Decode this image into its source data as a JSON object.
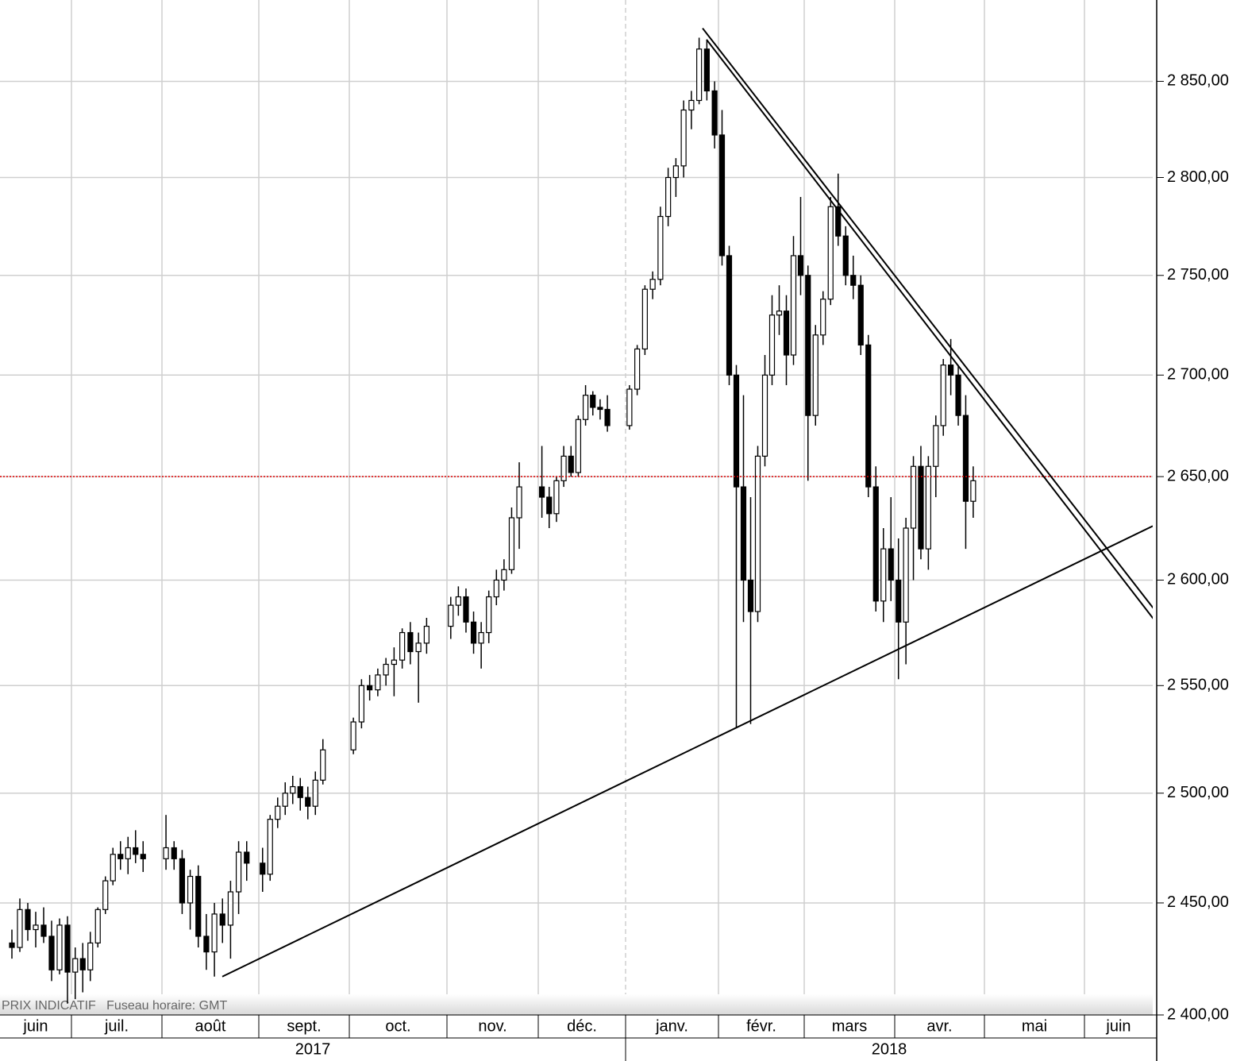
{
  "chart_data": {
    "type": "candlestick",
    "log_scale": true,
    "grid": true,
    "ylim": [
      2400,
      2893
    ],
    "yticks": [
      {
        "value": 2400,
        "label": "2 400,00"
      },
      {
        "value": 2450,
        "label": "2 450,00"
      },
      {
        "value": 2500,
        "label": "2 500,00"
      },
      {
        "value": 2550,
        "label": "2 550,00"
      },
      {
        "value": 2600,
        "label": "2 600,00"
      },
      {
        "value": 2650,
        "label": "2 650,00"
      },
      {
        "value": 2700,
        "label": "2 700,00"
      },
      {
        "value": 2750,
        "label": "2 750,00"
      },
      {
        "value": 2800,
        "label": "2 800,00"
      },
      {
        "value": 2850,
        "label": "2 850,00"
      }
    ],
    "note": "PRIX INDICATIF   Fuseau horaire: GMT",
    "up_color": "#ffffff",
    "down_color": "#000000",
    "reference_line": {
      "value": 2650,
      "color": "#e00000"
    },
    "trendlines": [
      {
        "values": [
          2417,
          2626
        ]
      },
      {
        "values": [
          2878,
          2585
        ]
      },
      {
        "values": [
          2872,
          2580
        ]
      }
    ],
    "years": [
      {
        "label": "2017",
        "months": [
          {
            "label": "juin",
            "candles": [
              [
                2432,
                2438,
                2425,
                2430
              ],
              [
                2430,
                2452,
                2428,
                2447
              ],
              [
                2447,
                2450,
                2433,
                2438
              ],
              [
                2438,
                2446,
                2430,
                2440
              ],
              [
                2440,
                2448,
                2432,
                2435
              ],
              [
                2435,
                2442,
                2415,
                2420
              ],
              [
                2420,
                2443,
                2418,
                2440
              ],
              [
                2440,
                2444,
                2405,
                2419
              ]
            ]
          },
          {
            "label": "juil.",
            "candles": [
              [
                2419,
                2430,
                2407,
                2425
              ],
              [
                2425,
                2432,
                2410,
                2420
              ],
              [
                2420,
                2437,
                2415,
                2432
              ],
              [
                2432,
                2448,
                2430,
                2447
              ],
              [
                2447,
                2462,
                2445,
                2460
              ],
              [
                2460,
                2475,
                2458,
                2472
              ],
              [
                2472,
                2478,
                2465,
                2470
              ],
              [
                2470,
                2480,
                2463,
                2475
              ],
              [
                2475,
                2483,
                2468,
                2472
              ],
              [
                2472,
                2478,
                2464,
                2470
              ]
            ]
          },
          {
            "label": "août",
            "candles": [
              [
                2470,
                2490,
                2465,
                2475
              ],
              [
                2475,
                2478,
                2465,
                2470
              ],
              [
                2470,
                2474,
                2445,
                2450
              ],
              [
                2450,
                2465,
                2438,
                2462
              ],
              [
                2462,
                2467,
                2430,
                2435
              ],
              [
                2435,
                2445,
                2420,
                2428
              ],
              [
                2428,
                2450,
                2417,
                2445
              ],
              [
                2445,
                2452,
                2432,
                2440
              ],
              [
                2440,
                2460,
                2425,
                2455
              ],
              [
                2455,
                2478,
                2445,
                2473
              ],
              [
                2473,
                2478,
                2460,
                2468
              ]
            ]
          },
          {
            "label": "sept.",
            "candles": [
              [
                2468,
                2475,
                2455,
                2463
              ],
              [
                2463,
                2490,
                2460,
                2488
              ],
              [
                2488,
                2498,
                2484,
                2494
              ],
              [
                2494,
                2505,
                2490,
                2500
              ],
              [
                2500,
                2508,
                2495,
                2503
              ],
              [
                2503,
                2507,
                2492,
                2498
              ],
              [
                2498,
                2503,
                2488,
                2494
              ],
              [
                2494,
                2510,
                2490,
                2506
              ],
              [
                2506,
                2525,
                2504,
                2520
              ]
            ]
          },
          {
            "label": "oct.",
            "candles": [
              [
                2520,
                2535,
                2518,
                2533
              ],
              [
                2533,
                2553,
                2530,
                2550
              ],
              [
                2550,
                2555,
                2543,
                2548
              ],
              [
                2548,
                2558,
                2545,
                2555
              ],
              [
                2555,
                2563,
                2550,
                2560
              ],
              [
                2560,
                2568,
                2545,
                2562
              ],
              [
                2562,
                2577,
                2558,
                2575
              ],
              [
                2575,
                2580,
                2560,
                2566
              ],
              [
                2566,
                2575,
                2542,
                2570
              ],
              [
                2570,
                2582,
                2565,
                2578
              ]
            ]
          },
          {
            "label": "nov.",
            "candles": [
              [
                2578,
                2592,
                2572,
                2588
              ],
              [
                2588,
                2597,
                2583,
                2592
              ],
              [
                2592,
                2596,
                2575,
                2580
              ],
              [
                2580,
                2585,
                2565,
                2570
              ],
              [
                2570,
                2580,
                2558,
                2575
              ],
              [
                2575,
                2595,
                2570,
                2592
              ],
              [
                2592,
                2605,
                2588,
                2600
              ],
              [
                2600,
                2610,
                2595,
                2605
              ],
              [
                2605,
                2635,
                2603,
                2630
              ],
              [
                2630,
                2657,
                2615,
                2645
              ]
            ]
          },
          {
            "label": "déc.",
            "candles": [
              [
                2645,
                2665,
                2630,
                2640
              ],
              [
                2640,
                2645,
                2625,
                2632
              ],
              [
                2632,
                2650,
                2628,
                2648
              ],
              [
                2648,
                2665,
                2645,
                2660
              ],
              [
                2660,
                2665,
                2650,
                2652
              ],
              [
                2652,
                2680,
                2650,
                2678
              ],
              [
                2678,
                2695,
                2675,
                2690
              ],
              [
                2690,
                2692,
                2680,
                2684
              ],
              [
                2684,
                2688,
                2678,
                2683
              ],
              [
                2683,
                2690,
                2672,
                2675
              ]
            ]
          }
        ]
      },
      {
        "label": "2018",
        "months": [
          {
            "label": "janv.",
            "candles": [
              [
                2675,
                2695,
                2673,
                2693
              ],
              [
                2693,
                2715,
                2690,
                2713
              ],
              [
                2713,
                2745,
                2710,
                2743
              ],
              [
                2743,
                2752,
                2738,
                2748
              ],
              [
                2748,
                2785,
                2745,
                2780
              ],
              [
                2780,
                2805,
                2775,
                2800
              ],
              [
                2800,
                2810,
                2790,
                2806
              ],
              [
                2806,
                2840,
                2800,
                2835
              ],
              [
                2835,
                2845,
                2825,
                2840
              ],
              [
                2840,
                2873,
                2838,
                2867
              ],
              [
                2867,
                2872,
                2840,
                2845
              ],
              [
                2845,
                2850,
                2815,
                2822
              ]
            ]
          },
          {
            "label": "févr.",
            "candles": [
              [
                2822,
                2835,
                2755,
                2760
              ],
              [
                2760,
                2765,
                2695,
                2700
              ],
              [
                2700,
                2705,
                2530,
                2645
              ],
              [
                2645,
                2690,
                2580,
                2600
              ],
              [
                2600,
                2640,
                2532,
                2585
              ],
              [
                2585,
                2665,
                2580,
                2660
              ],
              [
                2660,
                2710,
                2655,
                2700
              ],
              [
                2700,
                2740,
                2695,
                2730
              ],
              [
                2730,
                2745,
                2720,
                2732
              ],
              [
                2732,
                2740,
                2695,
                2710
              ],
              [
                2710,
                2770,
                2705,
                2760
              ],
              [
                2760,
                2790,
                2740,
                2750
              ]
            ]
          },
          {
            "label": "mars",
            "candles": [
              [
                2750,
                2755,
                2648,
                2680
              ],
              [
                2680,
                2725,
                2675,
                2720
              ],
              [
                2720,
                2742,
                2715,
                2738
              ],
              [
                2738,
                2790,
                2735,
                2785
              ],
              [
                2785,
                2802,
                2765,
                2770
              ],
              [
                2770,
                2775,
                2745,
                2750
              ],
              [
                2750,
                2760,
                2738,
                2745
              ],
              [
                2745,
                2750,
                2710,
                2715
              ],
              [
                2715,
                2720,
                2640,
                2645
              ],
              [
                2645,
                2655,
                2585,
                2590
              ],
              [
                2590,
                2625,
                2580,
                2615
              ],
              [
                2615,
                2640,
                2590,
                2600
              ]
            ]
          },
          {
            "label": "avr.",
            "candles": [
              [
                2600,
                2620,
                2553,
                2580
              ],
              [
                2580,
                2630,
                2560,
                2625
              ],
              [
                2625,
                2660,
                2600,
                2655
              ],
              [
                2655,
                2665,
                2610,
                2615
              ],
              [
                2615,
                2660,
                2605,
                2655
              ],
              [
                2655,
                2680,
                2640,
                2675
              ],
              [
                2675,
                2708,
                2670,
                2705
              ],
              [
                2705,
                2718,
                2690,
                2700
              ],
              [
                2700,
                2705,
                2675,
                2680
              ],
              [
                2680,
                2690,
                2615,
                2638
              ],
              [
                2638,
                2655,
                2630,
                2648
              ]
            ]
          },
          {
            "label": "mai",
            "candles": []
          },
          {
            "label": "juin",
            "candles": []
          }
        ]
      }
    ]
  }
}
